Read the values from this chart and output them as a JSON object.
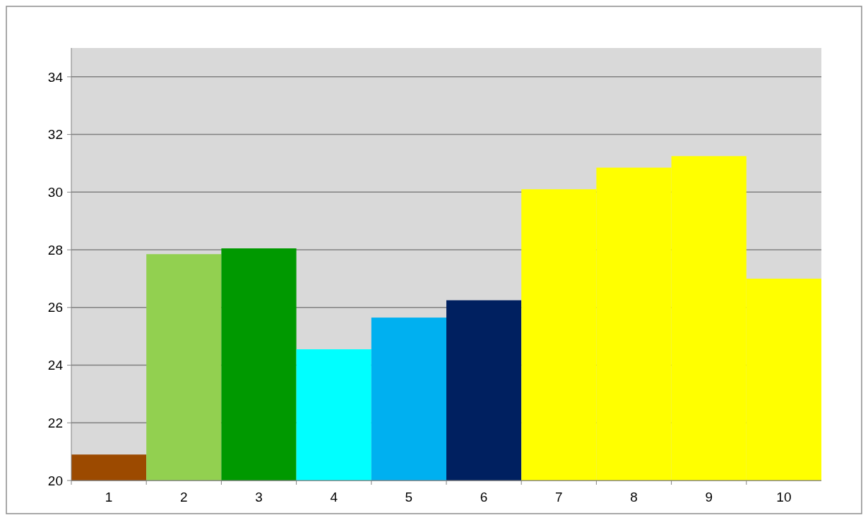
{
  "chart_data": {
    "type": "bar",
    "categories": [
      "1",
      "2",
      "3",
      "4",
      "5",
      "6",
      "7",
      "8",
      "9",
      "10"
    ],
    "values": [
      20.9,
      27.85,
      28.05,
      24.55,
      25.65,
      26.25,
      30.1,
      30.85,
      31.25,
      27.0
    ],
    "colors": [
      "#9c4a00",
      "#92d050",
      "#009900",
      "#00ffff",
      "#00b0f0",
      "#002060",
      "#ffff00",
      "#ffff00",
      "#ffff00",
      "#ffff00"
    ],
    "ylim": [
      20,
      35
    ],
    "yticks": [
      20,
      22,
      24,
      26,
      28,
      30,
      32,
      34
    ],
    "grid": "y"
  }
}
